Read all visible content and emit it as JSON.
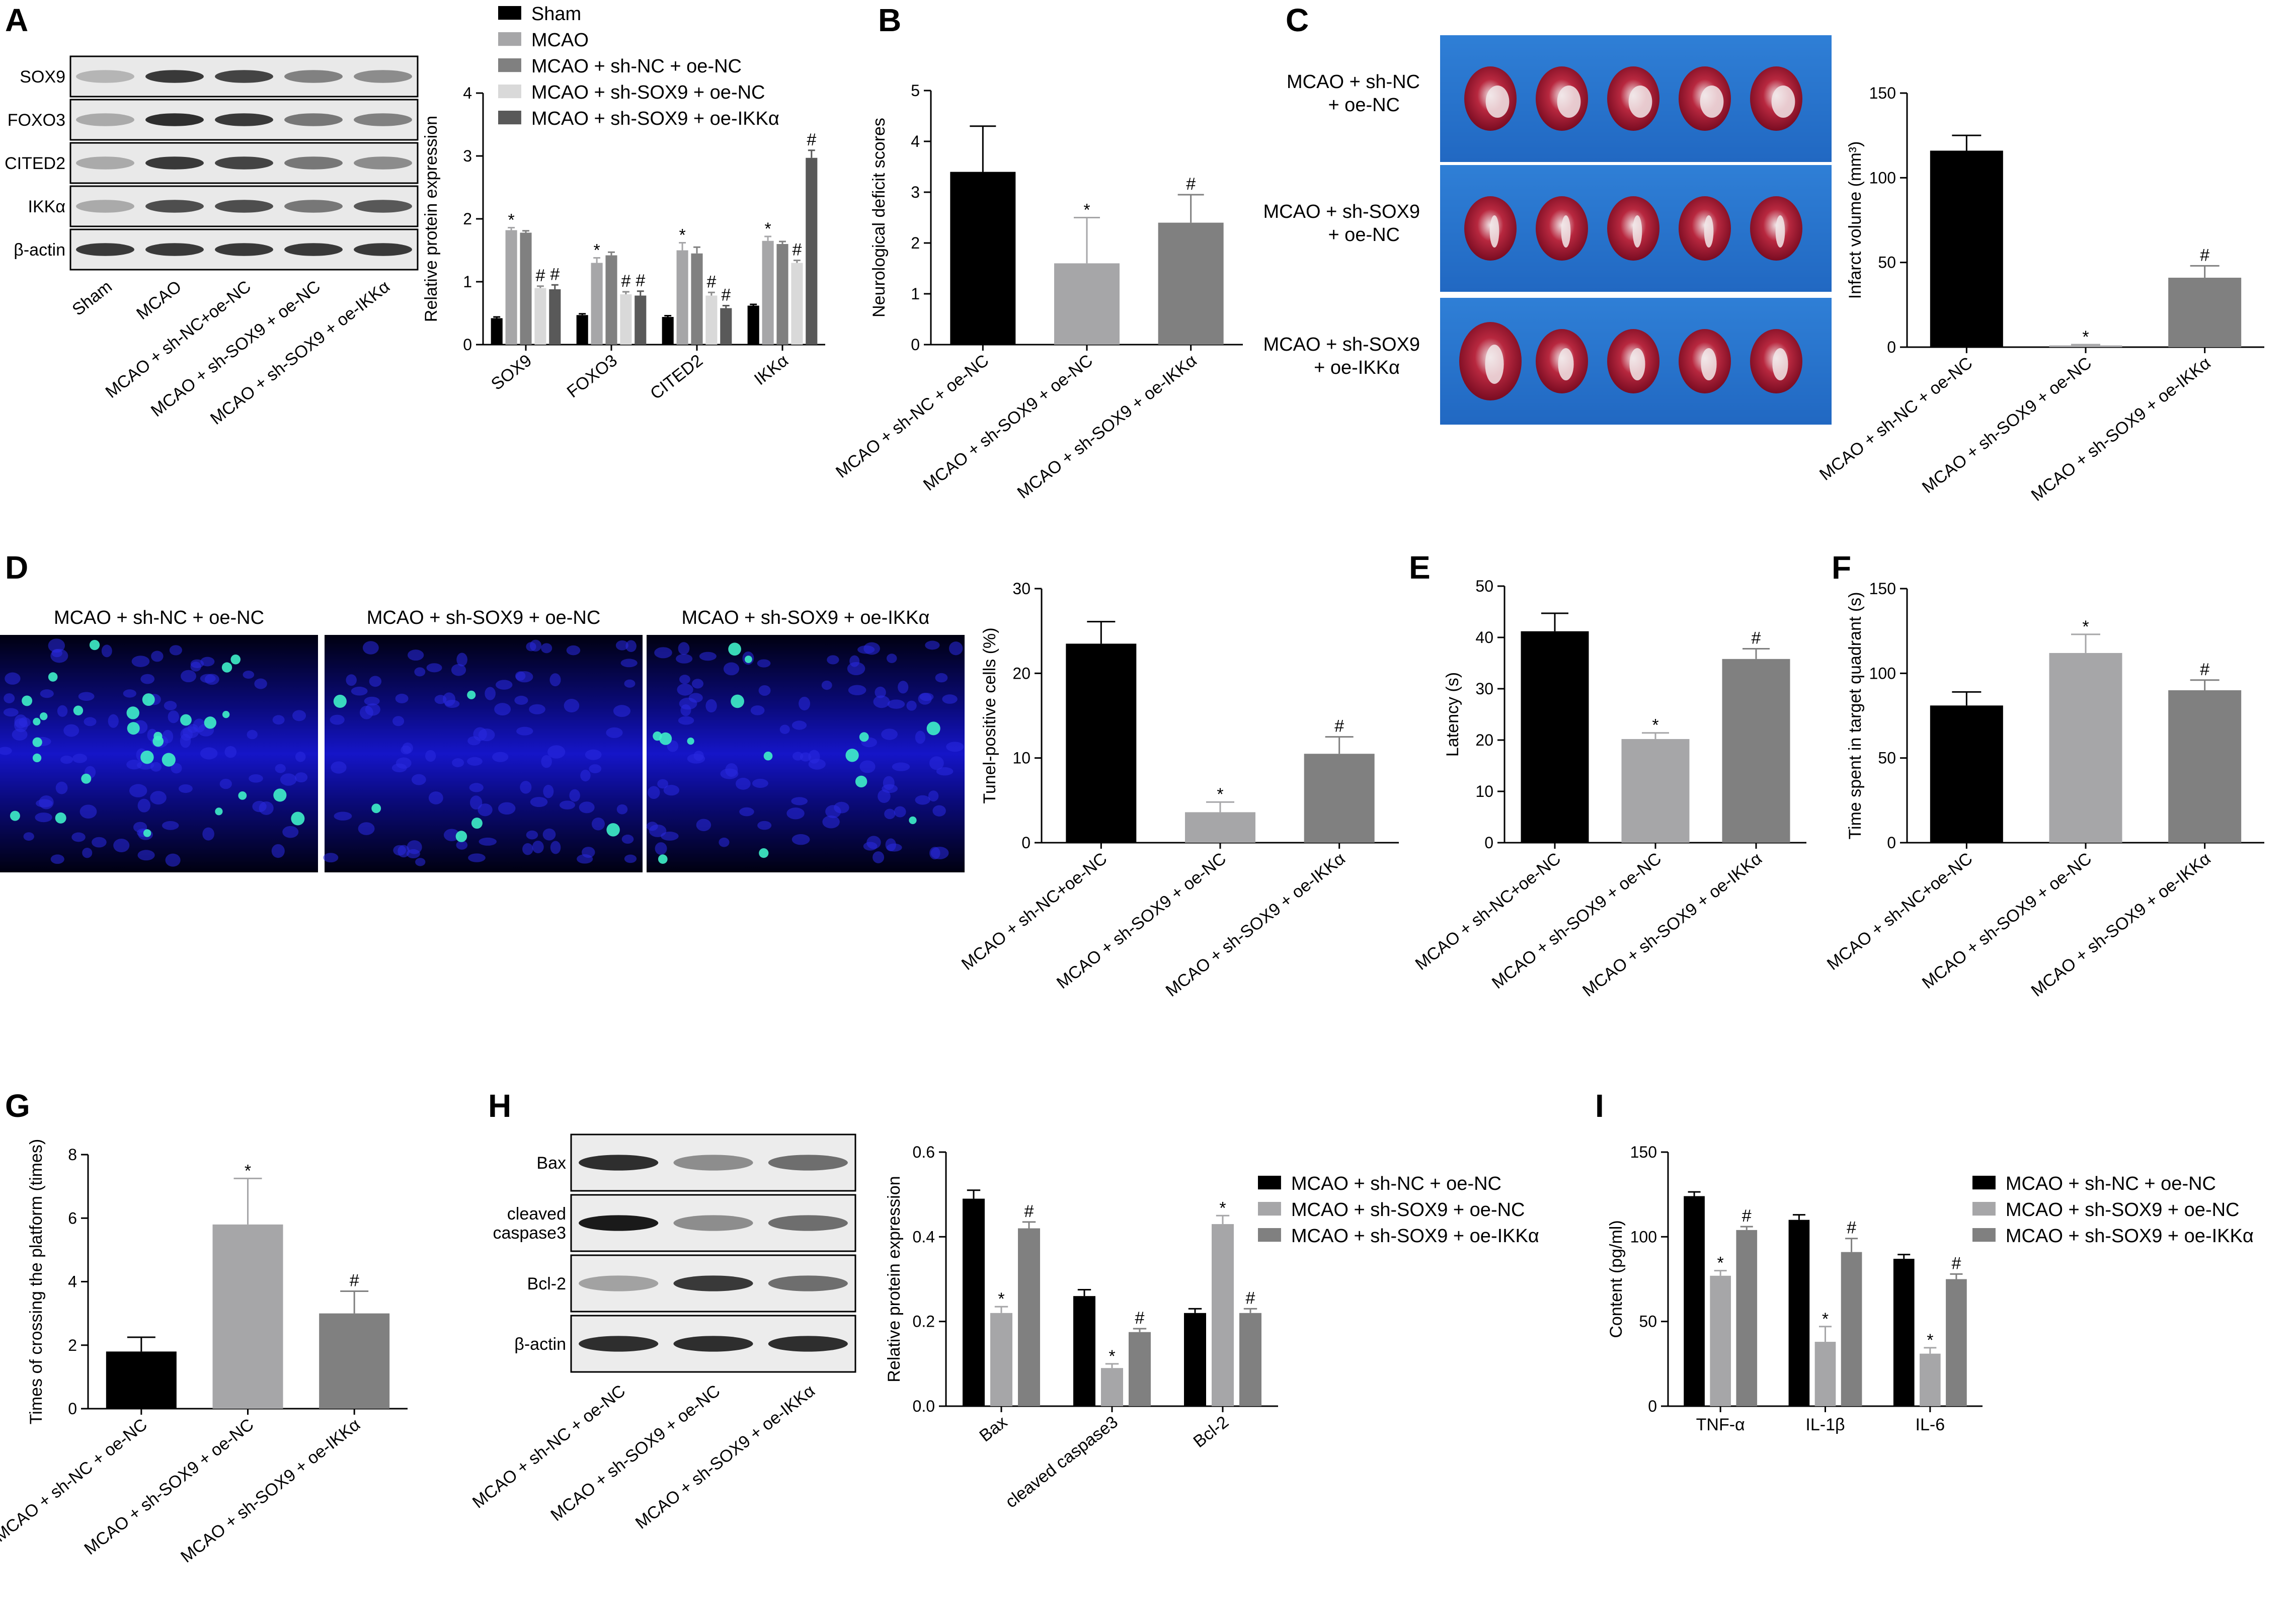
{
  "palette": {
    "black": "#000000",
    "light_gray": "#a6a6a8",
    "mid_gray": "#808080",
    "very_light": "#d9d9d9",
    "dark_gray": "#595959"
  },
  "panels": {
    "A": {
      "label": "A",
      "blot_bands": [
        "SOX9",
        "FOXO3",
        "CITED2",
        "IKKα",
        "β-actin"
      ],
      "blot_lanes": [
        "Sham",
        "MCAO",
        "MCAO + sh-NC+oe-NC",
        "MCAO + sh-SOX9 + oe-NC",
        "MCAO + sh-SOX9 + oe-IKKα"
      ]
    },
    "B": {
      "label": "B"
    },
    "C": {
      "label": "C",
      "image_groups": [
        "MCAO + sh-NC\n+ oe-NC",
        "MCAO + sh-SOX9\n+ oe-NC",
        "MCAO + sh-SOX9\n+ oe-IKKα"
      ]
    },
    "D": {
      "label": "D",
      "image_titles": [
        "MCAO + sh-NC + oe-NC",
        "MCAO + sh-SOX9 + oe-NC",
        "MCAO + sh-SOX9 + oe-IKKα"
      ]
    },
    "E": {
      "label": "E"
    },
    "F": {
      "label": "F"
    },
    "G": {
      "label": "G"
    },
    "H": {
      "label": "H",
      "blot_bands": [
        "Bax",
        "cleaved\ncaspase3",
        "Bcl-2",
        "β-actin"
      ],
      "blot_lanes": [
        "MCAO + sh-NC + oe-NC",
        "MCAO + sh-SOX9 + oe-NC",
        "MCAO + sh-SOX9 + oe-IKKα"
      ]
    },
    "I": {
      "label": "I"
    }
  },
  "chart_data": [
    {
      "id": "A",
      "type": "bar",
      "ylabel": "Relative protein expression",
      "ylim": [
        0,
        4
      ],
      "yticks": [
        0,
        1,
        2,
        3,
        4
      ],
      "categories": [
        "SOX9",
        "FOXO3",
        "CITED2",
        "IKKα"
      ],
      "series": [
        {
          "name": "Sham",
          "color": "#000000",
          "values": [
            0.42,
            0.47,
            0.44,
            0.62
          ],
          "errors": [
            0.02,
            0.02,
            0.02,
            0.02
          ],
          "marks": [
            "",
            "",
            "",
            ""
          ]
        },
        {
          "name": "MCAO",
          "color": "#a6a6a8",
          "values": [
            1.82,
            1.3,
            1.5,
            1.65
          ],
          "errors": [
            0.04,
            0.08,
            0.12,
            0.07
          ],
          "marks": [
            "*",
            "*",
            "*",
            "*"
          ]
        },
        {
          "name": "MCAO + sh-NC + oe-NC",
          "color": "#808080",
          "values": [
            1.78,
            1.42,
            1.45,
            1.6
          ],
          "errors": [
            0.03,
            0.05,
            0.1,
            0.04
          ],
          "marks": [
            "",
            "",
            "",
            ""
          ]
        },
        {
          "name": "MCAO + sh-SOX9 + oe-NC",
          "color": "#d9d9d9",
          "values": [
            0.9,
            0.8,
            0.78,
            1.3
          ],
          "errors": [
            0.03,
            0.04,
            0.05,
            0.04
          ],
          "marks": [
            "#",
            "#",
            "#",
            "#"
          ]
        },
        {
          "name": "MCAO + sh-SOX9 + oe-IKKα",
          "color": "#595959",
          "values": [
            0.88,
            0.78,
            0.58,
            2.97
          ],
          "errors": [
            0.07,
            0.07,
            0.04,
            0.12
          ],
          "marks": [
            "#",
            "#",
            "#",
            "#"
          ]
        }
      ],
      "legend": "top-right"
    },
    {
      "id": "B",
      "type": "bar",
      "ylabel": "Neurological deficit scores",
      "ylim": [
        0,
        5
      ],
      "yticks": [
        0,
        1,
        2,
        3,
        4,
        5
      ],
      "categories": [
        "MCAO + sh-NC + oe-NC",
        "MCAO + sh-SOX9 + oe-NC",
        "MCAO + sh-SOX9 + oe-IKKα"
      ],
      "values": [
        3.4,
        1.6,
        2.4
      ],
      "errors": [
        0.9,
        0.9,
        0.55
      ],
      "colors": [
        "#000000",
        "#a6a6a8",
        "#808080"
      ],
      "marks": [
        "",
        "*",
        "#"
      ]
    },
    {
      "id": "C",
      "type": "bar",
      "ylabel": "Infarct volume (mm³)",
      "ylim": [
        0,
        150
      ],
      "yticks": [
        0,
        50,
        100,
        150
      ],
      "categories": [
        "MCAO + sh-NC + oe-NC",
        "MCAO + sh-SOX9 + oe-NC",
        "MCAO + sh-SOX9 + oe-IKKα"
      ],
      "values": [
        116,
        1,
        41
      ],
      "errors": [
        9,
        0.5,
        7
      ],
      "colors": [
        "#000000",
        "#a6a6a8",
        "#808080"
      ],
      "marks": [
        "",
        "*",
        "#"
      ]
    },
    {
      "id": "D",
      "type": "bar",
      "ylabel": "Tunel-positive cells (%)",
      "ylim": [
        0,
        30
      ],
      "yticks": [
        0,
        10,
        20,
        30
      ],
      "categories": [
        "MCAO + sh-NC+oe-NC",
        "MCAO + sh-SOX9 + oe-NC",
        "MCAO + sh-SOX9 + oe-IKKα"
      ],
      "values": [
        23.5,
        3.6,
        10.5
      ],
      "errors": [
        2.6,
        1.2,
        2.0
      ],
      "colors": [
        "#000000",
        "#a6a6a8",
        "#808080"
      ],
      "marks": [
        "",
        "*",
        "#"
      ]
    },
    {
      "id": "E",
      "type": "bar",
      "ylabel": "Latency (s)",
      "ylim": [
        0,
        50
      ],
      "yticks": [
        0,
        10,
        20,
        30,
        40,
        50
      ],
      "categories": [
        "MCAO + sh-NC+oe-NC",
        "MCAO + sh-SOX9 + oe-NC",
        "MCAO + sh-SOX9 + oe-IKKα"
      ],
      "values": [
        41.2,
        20.2,
        35.8
      ],
      "errors": [
        3.5,
        1.2,
        2.0
      ],
      "colors": [
        "#000000",
        "#a6a6a8",
        "#808080"
      ],
      "marks": [
        "",
        "*",
        "#"
      ]
    },
    {
      "id": "F",
      "type": "bar",
      "ylabel": "Time spent in target quadrant (s)",
      "ylim": [
        0,
        150
      ],
      "yticks": [
        0,
        50,
        100,
        150
      ],
      "categories": [
        "MCAO + sh-NC+oe-NC",
        "MCAO + sh-SOX9 + oe-NC",
        "MCAO + sh-SOX9 + oe-IKKα"
      ],
      "values": [
        81,
        112,
        90
      ],
      "errors": [
        8,
        11,
        6
      ],
      "colors": [
        "#000000",
        "#a6a6a8",
        "#808080"
      ],
      "marks": [
        "",
        "*",
        "#"
      ]
    },
    {
      "id": "G",
      "type": "bar",
      "ylabel": "Times of crossing the platform (times)",
      "ylim": [
        0,
        8
      ],
      "yticks": [
        0,
        2,
        4,
        6,
        8
      ],
      "categories": [
        "MCAO + sh-NC + oe-NC",
        "MCAO + sh-SOX9 + oe-NC",
        "MCAO + sh-SOX9 + oe-IKKα"
      ],
      "values": [
        1.8,
        5.8,
        3.0
      ],
      "errors": [
        0.45,
        1.45,
        0.7
      ],
      "colors": [
        "#000000",
        "#a6a6a8",
        "#808080"
      ],
      "marks": [
        "",
        "*",
        "#"
      ]
    },
    {
      "id": "H",
      "type": "bar",
      "ylabel": "Relative protein expression",
      "ylim": [
        0,
        0.6
      ],
      "yticks": [
        "0.0",
        "0.2",
        "0.4",
        "0.6"
      ],
      "categories": [
        "Bax",
        "cleaved caspase3",
        "Bcl-2"
      ],
      "series": [
        {
          "name": "MCAO + sh-NC + oe-NC",
          "color": "#000000",
          "values": [
            0.49,
            0.26,
            0.22
          ],
          "errors": [
            0.02,
            0.015,
            0.01
          ],
          "marks": [
            "",
            "",
            ""
          ]
        },
        {
          "name": "MCAO + sh-SOX9 + oe-NC",
          "color": "#a6a6a8",
          "values": [
            0.22,
            0.09,
            0.43
          ],
          "errors": [
            0.015,
            0.01,
            0.02
          ],
          "marks": [
            "*",
            "*",
            "*"
          ]
        },
        {
          "name": "MCAO + sh-SOX9 + oe-IKKα",
          "color": "#808080",
          "values": [
            0.42,
            0.175,
            0.22
          ],
          "errors": [
            0.015,
            0.008,
            0.01
          ],
          "marks": [
            "#",
            "#",
            "#"
          ]
        }
      ],
      "legend": "right"
    },
    {
      "id": "I",
      "type": "bar",
      "ylabel": "Content (pg/ml)",
      "ylim": [
        0,
        150
      ],
      "yticks": [
        0,
        50,
        100,
        150
      ],
      "categories": [
        "TNF-α",
        "IL-1β",
        "IL-6"
      ],
      "series": [
        {
          "name": "MCAO + sh-NC + oe-NC",
          "color": "#000000",
          "values": [
            124,
            110,
            87
          ],
          "errors": [
            2.5,
            3,
            2.5
          ],
          "marks": [
            "",
            "",
            ""
          ]
        },
        {
          "name": "MCAO + sh-SOX9 + oe-NC",
          "color": "#a6a6a8",
          "values": [
            77,
            38,
            31
          ],
          "errors": [
            3,
            9,
            3.5
          ],
          "marks": [
            "*",
            "*",
            "*"
          ]
        },
        {
          "name": "MCAO + sh-SOX9 + oe-IKKα",
          "color": "#808080",
          "values": [
            104,
            91,
            75
          ],
          "errors": [
            2,
            8,
            3
          ],
          "marks": [
            "#",
            "#",
            "#"
          ]
        }
      ],
      "legend": "right"
    }
  ]
}
